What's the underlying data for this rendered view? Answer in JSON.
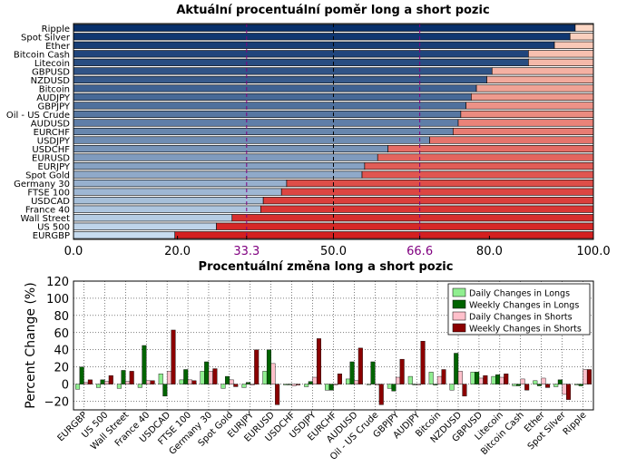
{
  "chart_data": [
    {
      "type": "bar",
      "orientation": "horizontal",
      "stacked": true,
      "title": "Aktuální procentuální poměr long a short pozic",
      "categories": [
        "Ripple",
        "Spot Silver",
        "Ether",
        "Bitcoin Cash",
        "Litecoin",
        "GBPUSD",
        "NZDUSD",
        "Bitcoin",
        "AUDJPY",
        "GBPJPY",
        "Oil - US Crude",
        "AUDUSD",
        "EURCHF",
        "USDJPY",
        "USDCHF",
        "EURUSD",
        "EURJPY",
        "Spot Gold",
        "Germany 30",
        "FTSE 100",
        "USDCAD",
        "France 40",
        "Wall Street",
        "US 500",
        "EURGBP"
      ],
      "series": [
        {
          "values": [
            96.5,
            95.5,
            92.5,
            87.5,
            87.5,
            80.5,
            79.5,
            77.5,
            76.5,
            75.5,
            74.5,
            74.0,
            73.0,
            68.5,
            60.5,
            58.5,
            56.0,
            55.5,
            41.0,
            40.0,
            36.5,
            36.0,
            30.5,
            27.5,
            19.5
          ]
        },
        {
          "values": [
            3.5,
            4.5,
            7.5,
            12.5,
            12.5,
            19.5,
            20.5,
            22.5,
            23.5,
            24.5,
            25.5,
            26.0,
            27.0,
            31.5,
            39.5,
            41.5,
            44.0,
            44.5,
            59.0,
            60.0,
            63.5,
            64.0,
            69.5,
            72.5,
            80.5
          ]
        }
      ],
      "xlim": [
        0,
        100
      ],
      "xticks": [
        "0.0",
        "20.0",
        "33.3",
        "50.0",
        "66.6",
        "80.0",
        "100.0"
      ],
      "reference_lines": [
        33.3,
        50.0,
        66.6
      ],
      "colors": {
        "reference": "#800080",
        "dashed_center": "#000000"
      }
    },
    {
      "type": "bar",
      "title": "Procentuální změna long a short pozic",
      "ylabel": "Percent Change (%)",
      "ylim": [
        -30,
        120
      ],
      "yticks": [
        "120",
        "100",
        "80",
        "60",
        "40",
        "20",
        "0",
        "−20"
      ],
      "grid": true,
      "legend_position": "top-right",
      "categories": [
        "EURGBP",
        "US 500",
        "Wall Street",
        "France 40",
        "USDCAD",
        "FTSE 100",
        "Germany 30",
        "Spot Gold",
        "EURJPY",
        "EURUSD",
        "USDCHF",
        "USDJPY",
        "EURCHF",
        "AUDUSD",
        "Oil - US Crude",
        "GBPJPY",
        "AUDJPY",
        "Bitcoin",
        "NZDUSD",
        "GBPUSD",
        "Litecoin",
        "Bitcoin Cash",
        "Ether",
        "Spot Silver",
        "Ripple"
      ],
      "series": [
        {
          "name": "Daily Changes in Longs",
          "color": "#90ee90",
          "values": [
            -6,
            -4,
            -5,
            -4,
            12,
            5,
            15,
            -5,
            -4,
            15,
            -1,
            -3,
            -7,
            6,
            0,
            -5,
            9,
            14,
            -7,
            14,
            9,
            -2,
            4,
            -3,
            -1
          ]
        },
        {
          "name": "Weekly Changes in Longs",
          "color": "#006400",
          "values": [
            20,
            5,
            16,
            45,
            -14,
            17,
            26,
            9,
            2,
            40,
            0,
            3,
            -7,
            26,
            26,
            -8,
            0,
            -1,
            36,
            14,
            11,
            -2,
            -2,
            5,
            -2
          ]
        },
        {
          "name": "Daily Changes in Shorts",
          "color": "#ffc0cb",
          "values": [
            2,
            3,
            3,
            4,
            15,
            5,
            15,
            5,
            -1,
            24,
            -2,
            8,
            -1,
            4,
            -1,
            8,
            -1,
            9,
            15,
            7,
            8,
            6,
            7,
            -12,
            17
          ]
        },
        {
          "name": "Weekly Changes in Shorts",
          "color": "#8b0000",
          "values": [
            5,
            10,
            15,
            4,
            63,
            4,
            18,
            -3,
            40,
            -24,
            -1,
            53,
            12,
            42,
            -24,
            29,
            50,
            17,
            -14,
            10,
            12,
            -7,
            -4,
            -18,
            17
          ]
        }
      ]
    }
  ]
}
